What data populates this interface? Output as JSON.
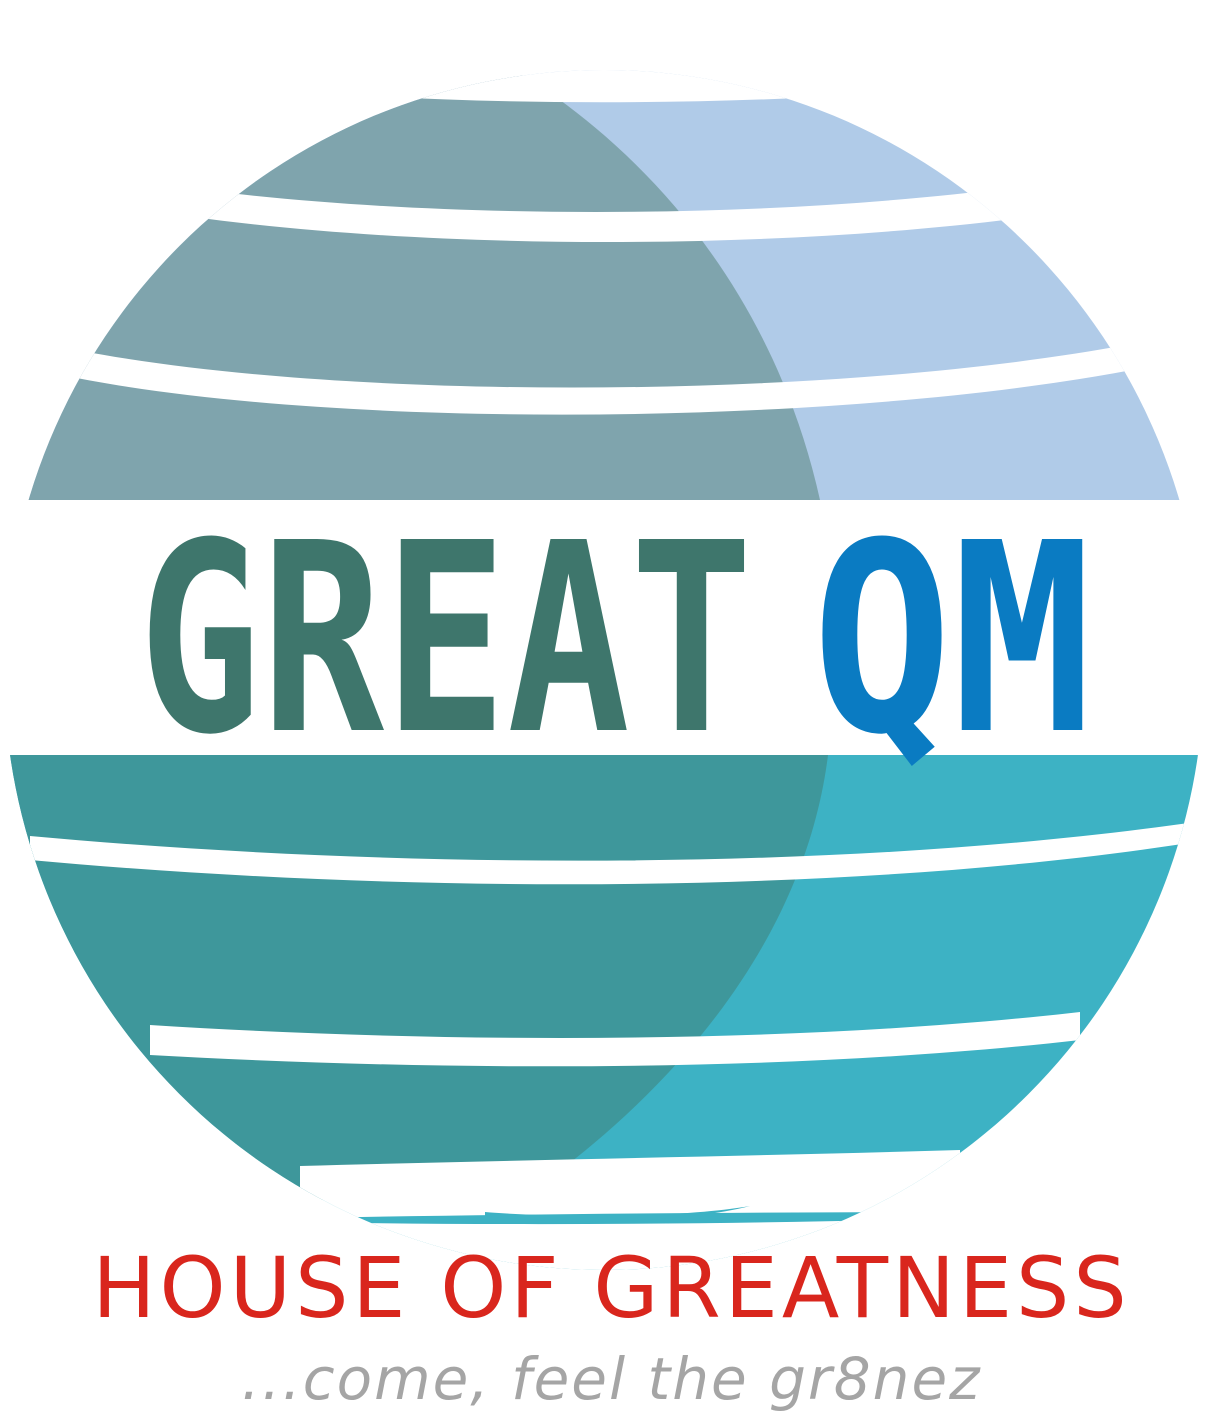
{
  "logo": {
    "brand_word_1": "GREAT",
    "brand_word_2": "QM",
    "tagline": "HOUSE OF GREATNESS",
    "slogan": "...come, feel the gr8nez"
  },
  "colors": {
    "globe_top_left": "#7fa4ad",
    "globe_top_right": "#b0cbe8",
    "globe_bottom_left": "#3e979b",
    "globe_bottom_right": "#3db2c4",
    "brand_word_1": "#3e766c",
    "brand_word_2": "#0a7bc2",
    "tagline": "#d9261d",
    "slogan": "#a5a5a5"
  },
  "icons": [
    "globe-icon"
  ]
}
